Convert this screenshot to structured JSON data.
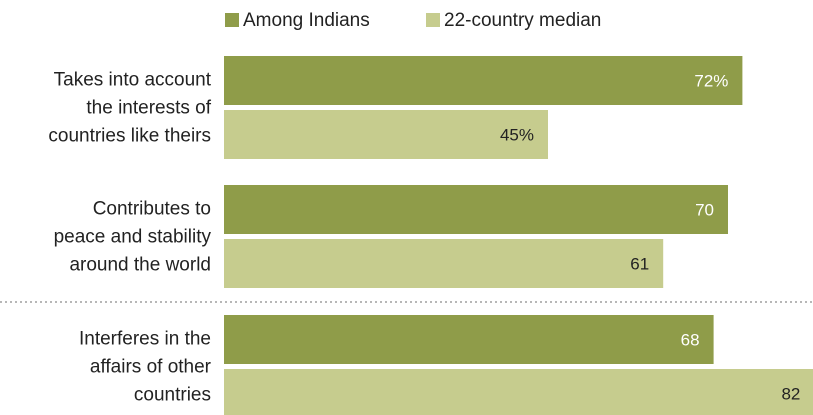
{
  "chart_data": {
    "type": "bar",
    "orientation": "horizontal",
    "legend": {
      "position": "top",
      "entries": [
        {
          "label": "Among Indians",
          "color": "#8f9c49"
        },
        {
          "label": "22-country median",
          "color": "#c6cc8e"
        }
      ]
    },
    "categories": [
      [
        "Takes into account",
        "the interests of",
        "countries like theirs"
      ],
      [
        "Contributes to",
        "peace and stability",
        "around the world"
      ],
      [
        "Interferes in the",
        "affairs of other",
        "countries"
      ]
    ],
    "series": [
      {
        "name": "Among Indians",
        "color": "#8f9c49",
        "label_color": "#ffffff",
        "values": [
          72,
          70,
          68
        ],
        "labels": [
          "72%",
          "70",
          "68"
        ]
      },
      {
        "name": "22-country median",
        "color": "#c6cc8e",
        "label_color": "#222222",
        "values": [
          45,
          61,
          82
        ],
        "labels": [
          "45%",
          "61",
          "82"
        ]
      }
    ],
    "xlim": [
      0,
      82
    ],
    "divider_after_category": 1,
    "divider_color": "#b7b7b7",
    "grid": false
  }
}
